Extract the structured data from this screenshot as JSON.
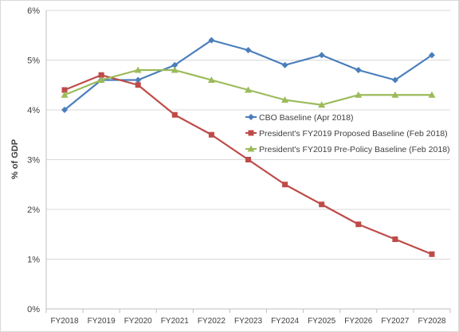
{
  "chart_data": {
    "type": "line",
    "title": "",
    "xlabel": "",
    "ylabel": "% of GDP",
    "ylim": [
      0,
      6
    ],
    "y_ticks": [
      "0%",
      "1%",
      "2%",
      "3%",
      "4%",
      "5%",
      "6%"
    ],
    "categories": [
      "FY2018",
      "FY2019",
      "FY2020",
      "FY2021",
      "FY2022",
      "FY2023",
      "FY2024",
      "FY2025",
      "FY2026",
      "FY2027",
      "FY2028"
    ],
    "grid": true,
    "legend_position": "right-center",
    "series": [
      {
        "name": "CBO Baseline (Apr 2018)",
        "color": "#4a7ebb",
        "marker": "diamond",
        "values": [
          4.0,
          4.6,
          4.6,
          4.9,
          5.4,
          5.2,
          4.9,
          5.1,
          4.8,
          4.6,
          5.1
        ]
      },
      {
        "name": "President's FY2019 Proposed Baseline (Feb 2018)",
        "color": "#be4b48",
        "marker": "square",
        "values": [
          4.4,
          4.7,
          4.5,
          3.9,
          3.5,
          3.0,
          2.5,
          2.1,
          1.7,
          1.4,
          1.1
        ]
      },
      {
        "name": "President's FY2019 Pre-Policy Baseline (Feb 2018)",
        "color": "#9bbb59",
        "marker": "triangle",
        "values": [
          4.3,
          4.6,
          4.8,
          4.8,
          4.6,
          4.4,
          4.2,
          4.1,
          4.3,
          4.3,
          4.3
        ]
      }
    ]
  }
}
